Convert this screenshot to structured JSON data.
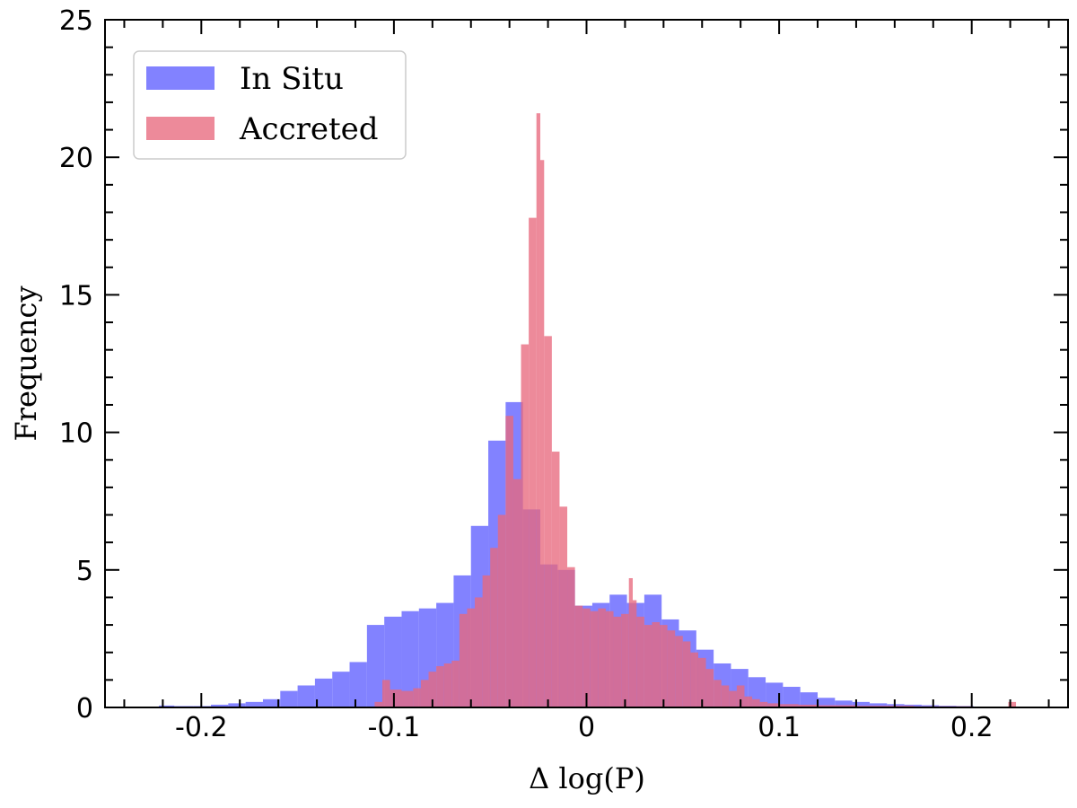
{
  "chart_data": {
    "type": "histogram",
    "xlabel": "Δ log(P)",
    "ylabel": "Frequency",
    "xlim": [
      -0.25,
      0.25
    ],
    "ylim": [
      0,
      25
    ],
    "x_ticks": [
      -0.2,
      -0.1,
      0,
      0.1,
      0.2
    ],
    "x_tick_labels": [
      "-0.2",
      "-0.1",
      "0",
      "0.1",
      "0.2"
    ],
    "y_ticks": [
      0,
      5,
      10,
      15,
      20,
      25
    ],
    "y_tick_labels": [
      "0",
      "5",
      "10",
      "15",
      "20",
      "25"
    ],
    "legend_position": "top-left",
    "series": [
      {
        "name": "In Situ",
        "color": "#6666ff",
        "bins": [
          [
            -0.222,
            -0.214,
            0.07
          ],
          [
            -0.214,
            -0.204,
            0.05
          ],
          [
            -0.204,
            -0.195,
            0.05
          ],
          [
            -0.195,
            -0.186,
            0.1
          ],
          [
            -0.186,
            -0.177,
            0.15
          ],
          [
            -0.177,
            -0.168,
            0.2
          ],
          [
            -0.168,
            -0.159,
            0.3
          ],
          [
            -0.159,
            -0.15,
            0.6
          ],
          [
            -0.15,
            -0.141,
            0.8
          ],
          [
            -0.141,
            -0.132,
            1.05
          ],
          [
            -0.132,
            -0.123,
            1.3
          ],
          [
            -0.123,
            -0.114,
            1.65
          ],
          [
            -0.114,
            -0.105,
            3.0
          ],
          [
            -0.105,
            -0.096,
            3.3
          ],
          [
            -0.096,
            -0.087,
            3.5
          ],
          [
            -0.087,
            -0.078,
            3.6
          ],
          [
            -0.078,
            -0.069,
            3.8
          ],
          [
            -0.069,
            -0.06,
            4.8
          ],
          [
            -0.06,
            -0.051,
            6.6
          ],
          [
            -0.051,
            -0.042,
            9.7
          ],
          [
            -0.042,
            -0.033,
            11.1
          ],
          [
            -0.033,
            -0.024,
            7.2
          ],
          [
            -0.024,
            -0.015,
            5.2
          ],
          [
            -0.015,
            -0.006,
            5.0
          ],
          [
            -0.006,
            0.003,
            3.7
          ],
          [
            0.003,
            0.012,
            3.8
          ],
          [
            0.012,
            0.021,
            4.1
          ],
          [
            0.021,
            0.03,
            3.8
          ],
          [
            0.03,
            0.039,
            4.1
          ],
          [
            0.039,
            0.048,
            3.2
          ],
          [
            0.048,
            0.057,
            2.8
          ],
          [
            0.057,
            0.066,
            2.1
          ],
          [
            0.066,
            0.075,
            1.6
          ],
          [
            0.075,
            0.084,
            1.4
          ],
          [
            0.084,
            0.093,
            1.1
          ],
          [
            0.093,
            0.102,
            0.9
          ],
          [
            0.102,
            0.111,
            0.75
          ],
          [
            0.111,
            0.12,
            0.55
          ],
          [
            0.12,
            0.129,
            0.35
          ],
          [
            0.129,
            0.138,
            0.25
          ],
          [
            0.138,
            0.147,
            0.2
          ],
          [
            0.147,
            0.156,
            0.15
          ],
          [
            0.156,
            0.165,
            0.12
          ],
          [
            0.165,
            0.174,
            0.1
          ],
          [
            0.174,
            0.183,
            0.08
          ],
          [
            0.183,
            0.192,
            0.06
          ],
          [
            0.192,
            0.201,
            0.05
          ]
        ]
      },
      {
        "name": "Accreted",
        "color": "#e8697e",
        "bins": [
          [
            -0.11,
            -0.106,
            0.2
          ],
          [
            -0.106,
            -0.102,
            1.0
          ],
          [
            -0.102,
            -0.096,
            0.65
          ],
          [
            -0.096,
            -0.09,
            0.6
          ],
          [
            -0.09,
            -0.086,
            0.7
          ],
          [
            -0.086,
            -0.082,
            1.0
          ],
          [
            -0.082,
            -0.078,
            1.3
          ],
          [
            -0.078,
            -0.074,
            1.5
          ],
          [
            -0.074,
            -0.07,
            1.6
          ],
          [
            -0.07,
            -0.066,
            1.7
          ],
          [
            -0.066,
            -0.062,
            3.4
          ],
          [
            -0.062,
            -0.058,
            3.6
          ],
          [
            -0.058,
            -0.054,
            4.0
          ],
          [
            -0.054,
            -0.05,
            4.8
          ],
          [
            -0.05,
            -0.046,
            5.8
          ],
          [
            -0.046,
            -0.042,
            7.0
          ],
          [
            -0.042,
            -0.038,
            10.6
          ],
          [
            -0.038,
            -0.034,
            8.3
          ],
          [
            -0.034,
            -0.03,
            13.2
          ],
          [
            -0.03,
            -0.026,
            17.8
          ],
          [
            -0.026,
            -0.024,
            21.6
          ],
          [
            -0.024,
            -0.022,
            19.9
          ],
          [
            -0.022,
            -0.018,
            13.5
          ],
          [
            -0.018,
            -0.014,
            9.3
          ],
          [
            -0.014,
            -0.01,
            7.3
          ],
          [
            -0.01,
            -0.006,
            5.1
          ],
          [
            -0.006,
            -0.002,
            3.7
          ],
          [
            -0.002,
            0.002,
            3.6
          ],
          [
            0.002,
            0.006,
            3.5
          ],
          [
            0.006,
            0.01,
            3.6
          ],
          [
            0.01,
            0.014,
            3.5
          ],
          [
            0.014,
            0.018,
            3.3
          ],
          [
            0.018,
            0.022,
            3.4
          ],
          [
            0.022,
            0.024,
            4.7
          ],
          [
            0.024,
            0.026,
            3.9
          ],
          [
            0.026,
            0.03,
            3.3
          ],
          [
            0.03,
            0.034,
            3.0
          ],
          [
            0.034,
            0.038,
            3.1
          ],
          [
            0.038,
            0.042,
            3.0
          ],
          [
            0.042,
            0.046,
            2.8
          ],
          [
            0.046,
            0.05,
            2.6
          ],
          [
            0.05,
            0.054,
            2.4
          ],
          [
            0.054,
            0.058,
            2.0
          ],
          [
            0.058,
            0.062,
            1.8
          ],
          [
            0.062,
            0.066,
            1.4
          ],
          [
            0.066,
            0.07,
            1.0
          ],
          [
            0.07,
            0.074,
            0.8
          ],
          [
            0.074,
            0.078,
            0.6
          ],
          [
            0.078,
            0.082,
            0.8
          ],
          [
            0.082,
            0.086,
            0.4
          ],
          [
            0.086,
            0.09,
            0.3
          ],
          [
            0.09,
            0.094,
            0.2
          ],
          [
            0.094,
            0.1,
            0.15
          ],
          [
            0.1,
            0.11,
            0.12
          ],
          [
            0.11,
            0.12,
            0.1
          ],
          [
            0.12,
            0.14,
            0.08
          ],
          [
            0.14,
            0.17,
            0.06
          ],
          [
            0.17,
            0.2,
            0.04
          ],
          [
            0.219,
            0.223,
            0.2
          ]
        ]
      }
    ]
  }
}
